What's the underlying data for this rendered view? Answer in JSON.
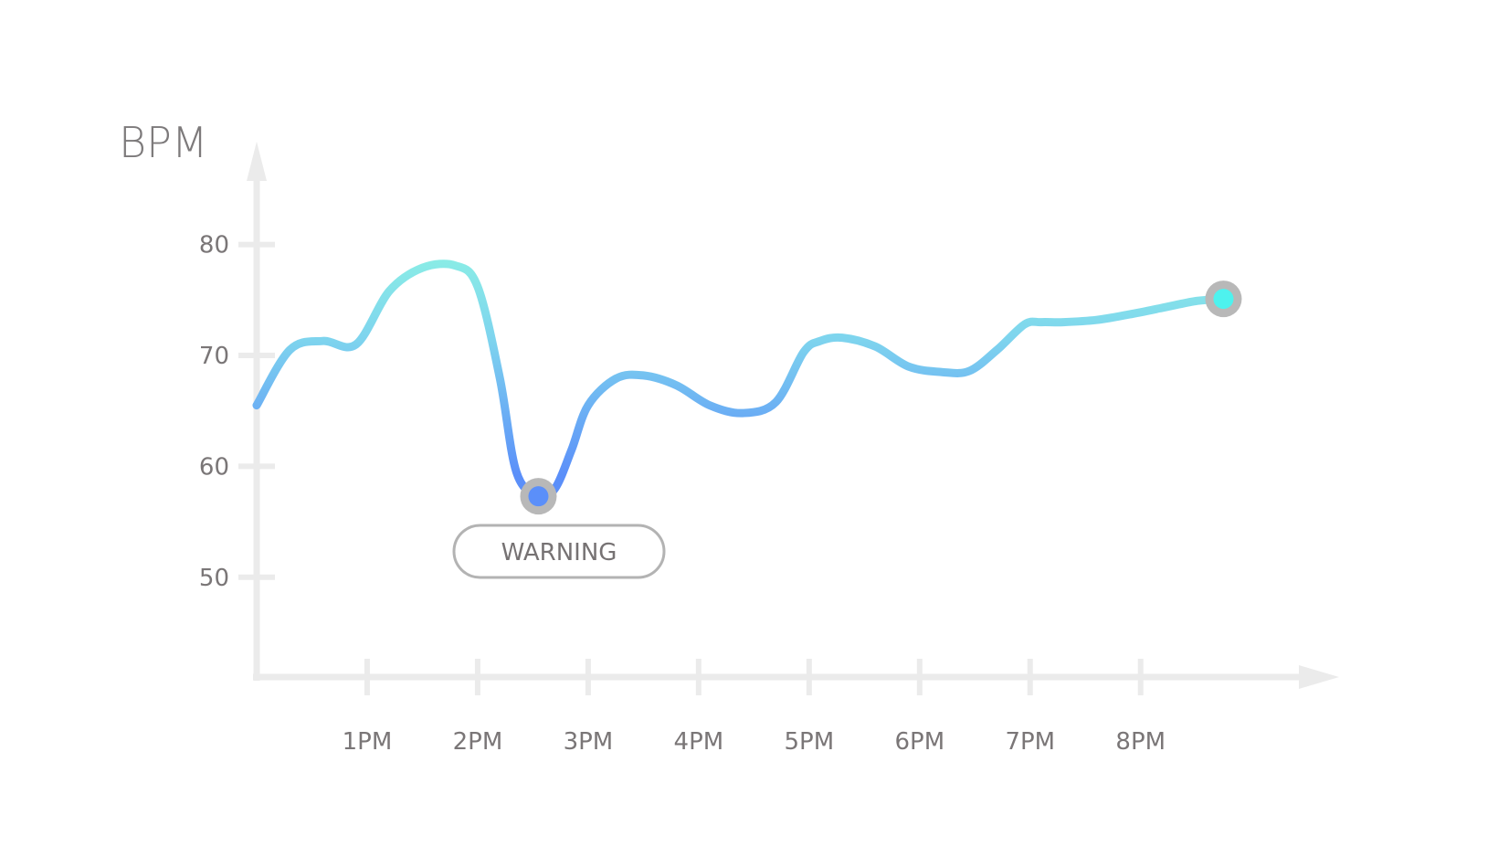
{
  "chart_data": {
    "type": "line",
    "title": "",
    "ylabel": "BPM",
    "xlabel": "",
    "ylim": [
      41,
      92
    ],
    "yticks": [
      50,
      60,
      70,
      80
    ],
    "ytick_labels": [
      "50",
      "60",
      "70",
      "80"
    ],
    "xlim": [
      12.0,
      21.3
    ],
    "xticks": [
      13,
      14,
      15,
      16,
      17,
      18,
      19,
      20
    ],
    "xtick_labels": [
      "1PM",
      "2PM",
      "3PM",
      "4PM",
      "5PM",
      "6PM",
      "7PM",
      "8PM"
    ],
    "grid": false,
    "legend": "none",
    "series": [
      {
        "x": [
          12.0,
          12.3,
          12.6,
          12.9,
          13.2,
          13.5,
          13.8,
          14.0,
          14.2,
          14.35,
          14.55,
          14.7,
          14.85,
          15.0,
          15.25,
          15.5,
          15.8,
          16.1,
          16.4,
          16.7,
          16.95,
          17.1,
          17.3,
          17.6,
          17.9,
          18.2,
          18.45,
          18.7,
          18.95,
          19.1,
          19.3,
          19.6,
          19.9,
          20.2,
          20.5,
          20.75
        ],
        "y": [
          65.5,
          70.5,
          71.3,
          71.0,
          75.8,
          77.9,
          78.1,
          76.2,
          68.0,
          59.5,
          57.3,
          58.0,
          61.5,
          65.5,
          67.9,
          68.2,
          67.3,
          65.5,
          64.8,
          65.8,
          70.3,
          71.3,
          71.6,
          70.8,
          69.0,
          68.5,
          68.6,
          70.5,
          72.8,
          73.0,
          73.0,
          73.2,
          73.7,
          74.3,
          74.9,
          75.1
        ]
      }
    ],
    "markers": [
      {
        "x": 14.55,
        "y": 57.3,
        "color": "#5b8ff9",
        "label": "WARNING"
      },
      {
        "x": 20.75,
        "y": 75.1,
        "color": "#4ef2ee"
      }
    ],
    "colors": {
      "line_low": "#5b8ff9",
      "line_mid": "#7ed4ee",
      "line_high": "#8ef5e3",
      "axis": "#ebebeb",
      "marker_ring": "#b8b8b8"
    }
  }
}
